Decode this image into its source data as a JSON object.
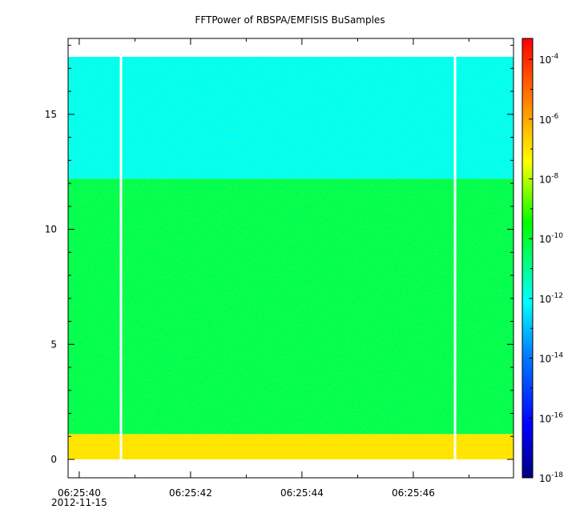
{
  "chart_data": {
    "type": "heatmap",
    "title": "FFTPower of RBSPA/EMFISIS  BuSamples",
    "xlabel": "",
    "ylabel": "",
    "x_range": [
      "06:25:39.8",
      "06:25:47.8"
    ],
    "x_ticks": [
      {
        "value": "06:25:40",
        "sub": "2012-11-15"
      },
      {
        "value": "06:25:42",
        "sub": ""
      },
      {
        "value": "06:25:44",
        "sub": ""
      },
      {
        "value": "06:25:46",
        "sub": ""
      }
    ],
    "y_range": [
      -0.8,
      18.3
    ],
    "y_ticks": [
      0,
      5,
      10,
      15
    ],
    "data_gaps": [
      "06:25:40.75",
      "06:25:46.75"
    ],
    "bands": [
      {
        "y0": 0.0,
        "y1": 1.1,
        "level_exp": -7.0
      },
      {
        "y0": 1.1,
        "y1": 12.2,
        "level_exp": -10.3
      },
      {
        "y0": 12.2,
        "y1": 17.5,
        "level_exp": -12.0
      }
    ],
    "colorbar": {
      "scale": "log",
      "range_exp": [
        -18,
        -3.3
      ],
      "ticks": [
        {
          "base": "10",
          "exp": "-4",
          "value": -4
        },
        {
          "base": "10",
          "exp": "-6",
          "value": -6
        },
        {
          "base": "10",
          "exp": "-8",
          "value": -8
        },
        {
          "base": "10",
          "exp": "-10",
          "value": -10
        },
        {
          "base": "10",
          "exp": "-12",
          "value": -12
        },
        {
          "base": "10",
          "exp": "-14",
          "value": -14
        },
        {
          "base": "10",
          "exp": "-16",
          "value": -16
        },
        {
          "base": "10",
          "exp": "-18",
          "value": -18
        }
      ],
      "colors": [
        "#00007f",
        "#0000ff",
        "#007fff",
        "#00ffff",
        "#00ff00",
        "#ffff00",
        "#ff7f00",
        "#ff0000"
      ]
    }
  }
}
